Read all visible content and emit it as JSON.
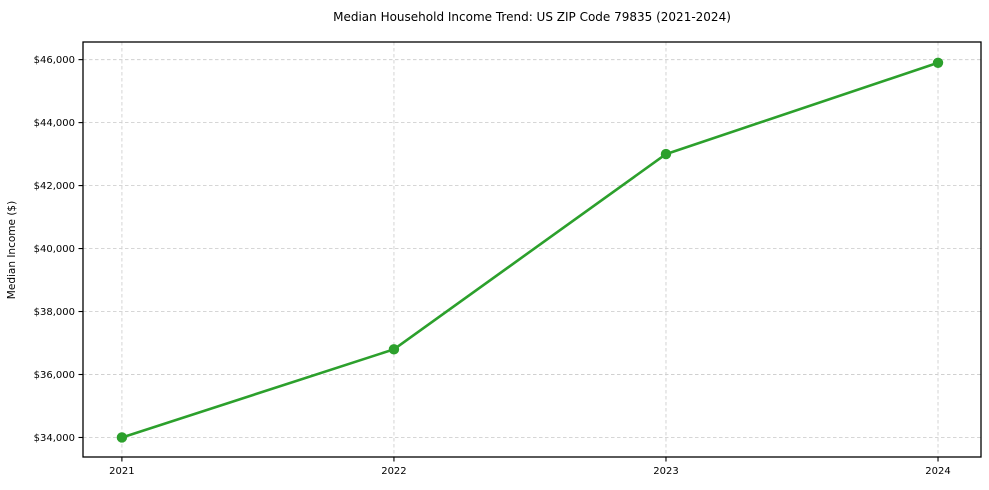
{
  "chart_data": {
    "type": "line",
    "title": "Median Household Income Trend: US ZIP Code 79835 (2021-2024)",
    "xlabel": "",
    "ylabel": "Median Income ($)",
    "categories": [
      2021,
      2022,
      2023,
      2024
    ],
    "x_tick_labels": [
      "2021",
      "2022",
      "2023",
      "2024"
    ],
    "series": [
      {
        "name": "Median Household Income",
        "values": [
          34000,
          36800,
          43000,
          45900
        ]
      }
    ],
    "y_ticks": [
      34000,
      36000,
      38000,
      40000,
      42000,
      44000,
      46000
    ],
    "y_tick_labels": [
      "$34,000",
      "$36,000",
      "$38,000",
      "$40,000",
      "$42,000",
      "$44,000",
      "$46,000"
    ],
    "xlim": [
      2020.857,
      2024.158
    ],
    "ylim": [
      33380,
      46560
    ],
    "grid": true,
    "legend": "none",
    "colors": {
      "line": "#2ca02c",
      "marker": "#2ca02c",
      "grid": "#d0d0d0",
      "spine": "#000000",
      "text": "#000000",
      "background": "#ffffff"
    }
  }
}
